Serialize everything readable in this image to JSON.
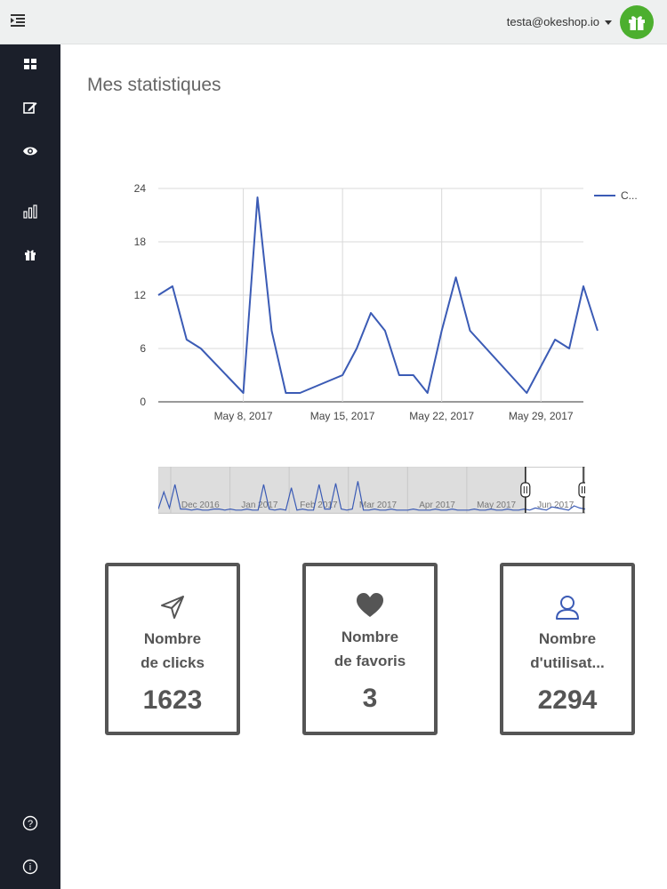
{
  "header": {
    "user_email": "testa@okeshop.io",
    "menu_toggle_icon": "indent-icon",
    "gift_icon": "gift-icon",
    "accent_color": "#4caf2e"
  },
  "sidebar": {
    "items": [
      {
        "icon": "dashboard-icon"
      },
      {
        "icon": "edit-icon"
      },
      {
        "icon": "eye-icon"
      },
      {
        "icon": "bar-chart-icon"
      },
      {
        "icon": "gift-icon"
      }
    ],
    "bottom_items": [
      {
        "icon": "help-icon"
      },
      {
        "icon": "info-icon"
      }
    ]
  },
  "page": {
    "title": "Mes statistiques"
  },
  "chart_data": {
    "type": "line",
    "title": "",
    "legend": {
      "label": "C...",
      "placement": "right"
    },
    "series": [
      {
        "name": "C...",
        "color": "#3b5bb5",
        "values": [
          12,
          13,
          7,
          6,
          1,
          23,
          8,
          1,
          1,
          3,
          6,
          10,
          8,
          3,
          3,
          1,
          8,
          14,
          8,
          1,
          4,
          7,
          6,
          13,
          8
        ]
      }
    ],
    "x_day_offsets": [
      0,
      1,
      2,
      3,
      6,
      7,
      8,
      9,
      10,
      13,
      14,
      15,
      16,
      17,
      18,
      19,
      20,
      21,
      22,
      26,
      27,
      28,
      29,
      30,
      31
    ],
    "x_start": "May 2, 2017",
    "x_ticks": [
      {
        "label": "May 8, 2017",
        "offset": 6
      },
      {
        "label": "May 15, 2017",
        "offset": 13
      },
      {
        "label": "May 22, 2017",
        "offset": 20
      },
      {
        "label": "May 29, 2017",
        "offset": 27
      }
    ],
    "y_ticks": [
      0,
      6,
      12,
      18,
      24
    ],
    "ylim": [
      0,
      24
    ],
    "xlim": [
      0,
      30
    ],
    "grid": true
  },
  "range_navigator": {
    "labels": [
      "Dec 2016",
      "Jan 2017",
      "Feb 2017",
      "Mar 2017",
      "Apr 2017",
      "May 2017",
      "Jun 2017"
    ],
    "selected_range": [
      "May 2017",
      "Jun 2017"
    ]
  },
  "stats": [
    {
      "icon": "send-icon",
      "label_line1": "Nombre",
      "label_line2": "de clicks",
      "value": "1623"
    },
    {
      "icon": "heart-icon",
      "label_line1": "Nombre",
      "label_line2": "de favoris",
      "value": "3"
    },
    {
      "icon": "user-icon",
      "label_line1": "Nombre",
      "label_line2": "d'utilisat...",
      "value": "2294"
    }
  ]
}
